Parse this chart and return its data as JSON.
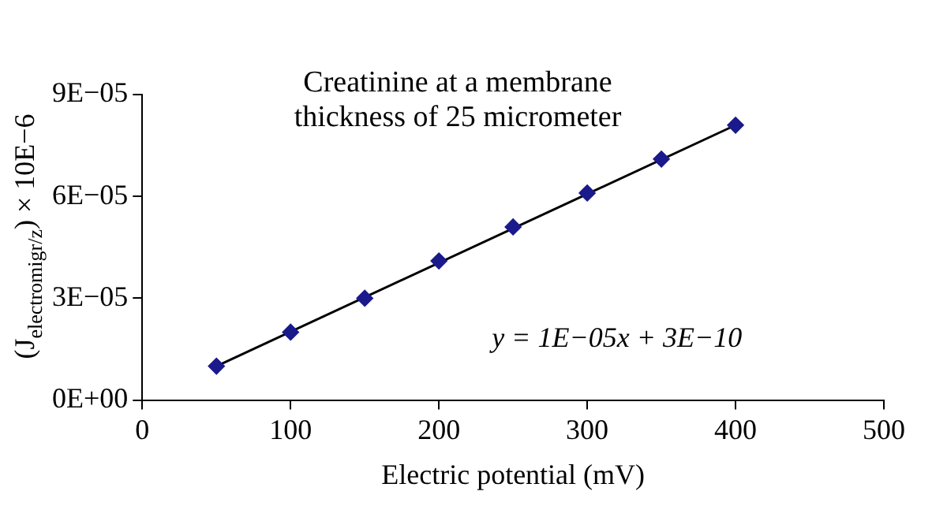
{
  "chart_data": {
    "type": "scatter",
    "title": "Creatinine at a membrane thickness of 25 micrometer",
    "xlabel": "Electric potential (mV)",
    "ylabel": "(J$_{electromigr/z}$) × 10E−6",
    "x": [
      50,
      100,
      150,
      200,
      250,
      300,
      350,
      400
    ],
    "series": [
      {
        "color": "#1a1a8c",
        "marker": "diamond",
        "values": [
          1e-05,
          2e-05,
          3e-05,
          4.1e-05,
          5.1e-05,
          6.1e-05,
          7.1e-05,
          8.1e-05
        ]
      },
      {
        "type": "line",
        "color": "#000000",
        "marker": "none",
        "line_style": "solid",
        "x": [
          50,
          400
        ],
        "values": [
          1e-05,
          8.1e-05
        ]
      }
    ],
    "xlim": [
      0,
      500
    ],
    "xticks": [
      0,
      100,
      200,
      300,
      400,
      500
    ],
    "ylim": [
      0,
      9e-05
    ],
    "yticks": [
      {
        "value": 0,
        "label": "0E+00"
      },
      {
        "value": 3e-05,
        "label": "3E−05"
      },
      {
        "value": 6e-05,
        "label": "6E−05"
      },
      {
        "value": 9e-05,
        "label": "9E−05"
      }
    ],
    "annotations": [
      "y = 1E−05x + 3E−10"
    ],
    "grid": false,
    "legend": false
  }
}
